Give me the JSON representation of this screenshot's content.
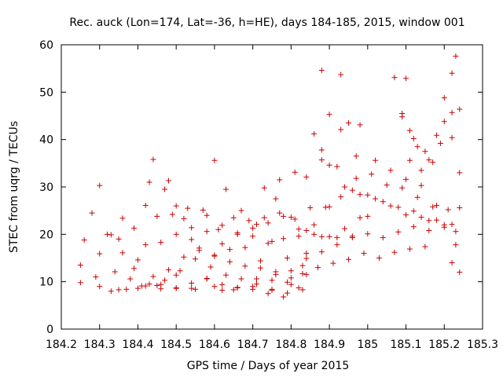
{
  "chart_data": {
    "type": "scatter",
    "title": "Rec. auck (Lon=174, Lat=-36, h=HE), days 184-185, 2015, window 001",
    "xlabel": "GPS time / Days of year 2015",
    "ylabel": "STEC from uqrg / TECUs",
    "xlim": [
      184.2,
      185.3
    ],
    "ylim": [
      0,
      60
    ],
    "xticks": [
      "184.2",
      "184.3",
      "184.4",
      "184.5",
      "184.6",
      "184.7",
      "184.8",
      "184.9",
      "185",
      "185.1",
      "185.2",
      "185.3"
    ],
    "yticks": [
      "0",
      "10",
      "20",
      "30",
      "40",
      "50",
      "60"
    ],
    "grid": false,
    "marker": "plus",
    "color": "#cc0000",
    "tracks": [
      [
        [
          184.25,
          9.8
        ],
        [
          184.3,
          9.0
        ],
        [
          184.35,
          8.3
        ],
        [
          184.4,
          8.6
        ],
        [
          184.45,
          9.2
        ],
        [
          184.5,
          8.7
        ],
        [
          184.55,
          8.4
        ],
        [
          184.6,
          9.0
        ],
        [
          184.65,
          8.3
        ],
        [
          184.7,
          9.0
        ],
        [
          184.75,
          8.2
        ],
        [
          184.8,
          9.4
        ],
        [
          184.84,
          11.5
        ]
      ],
      [
        [
          184.25,
          13.5
        ],
        [
          184.29,
          11.0
        ],
        [
          184.33,
          8.0
        ],
        [
          184.37,
          8.4
        ],
        [
          184.41,
          9.1
        ],
        [
          184.46,
          9.4
        ],
        [
          184.5,
          11.4
        ],
        [
          184.54,
          8.6
        ],
        [
          184.58,
          10.6
        ],
        [
          184.62,
          8.2
        ],
        [
          184.66,
          8.8
        ],
        [
          184.71,
          9.5
        ],
        [
          184.75,
          8.4
        ],
        [
          184.79,
          7.6
        ],
        [
          184.83,
          8.3
        ]
      ],
      [
        [
          184.26,
          18.8
        ],
        [
          184.3,
          15.9
        ],
        [
          184.34,
          12.1
        ],
        [
          184.38,
          10.6
        ],
        [
          184.42,
          9.1
        ],
        [
          184.46,
          8.5
        ],
        [
          184.5,
          8.6
        ],
        [
          184.54,
          9.7
        ],
        [
          184.58,
          10.7
        ],
        [
          184.62,
          9.4
        ],
        [
          184.66,
          8.7
        ],
        [
          184.7,
          8.4
        ],
        [
          184.74,
          7.5
        ],
        [
          184.78,
          6.8
        ],
        [
          184.82,
          8.7
        ]
      ],
      [
        [
          184.3,
          30.3
        ],
        [
          184.32,
          20.0
        ],
        [
          184.35,
          19.0
        ],
        [
          184.39,
          12.8
        ],
        [
          184.43,
          9.5
        ],
        [
          184.47,
          10.3
        ],
        [
          184.51,
          12.3
        ],
        [
          184.55,
          14.8
        ],
        [
          184.59,
          13.1
        ],
        [
          184.63,
          11.4
        ],
        [
          184.67,
          10.6
        ],
        [
          184.71,
          10.6
        ],
        [
          184.75,
          10.3
        ],
        [
          184.79,
          9.9
        ],
        [
          184.83,
          11.7
        ]
      ],
      [
        [
          184.28,
          24.5
        ],
        [
          184.33,
          19.9
        ],
        [
          184.36,
          16.1
        ],
        [
          184.4,
          14.6
        ],
        [
          184.44,
          11.1
        ],
        [
          184.48,
          12.5
        ],
        [
          184.52,
          15.2
        ],
        [
          184.56,
          16.6
        ],
        [
          184.6,
          15.6
        ],
        [
          184.64,
          16.8
        ],
        [
          184.68,
          17.2
        ],
        [
          184.72,
          14.4
        ],
        [
          184.76,
          11.5
        ],
        [
          184.8,
          12.3
        ],
        [
          184.84,
          16.0
        ]
      ],
      [
        [
          184.36,
          23.4
        ],
        [
          184.39,
          21.3
        ],
        [
          184.42,
          17.8
        ],
        [
          184.46,
          18.3
        ],
        [
          184.5,
          20.0
        ],
        [
          184.54,
          18.9
        ],
        [
          184.58,
          20.6
        ],
        [
          184.62,
          18.0
        ],
        [
          184.66,
          20.0
        ],
        [
          184.7,
          21.3
        ],
        [
          184.74,
          18.1
        ],
        [
          184.78,
          19.1
        ],
        [
          184.82,
          21.1
        ],
        [
          184.86,
          22.0
        ],
        [
          184.9,
          25.8
        ]
      ],
      [
        [
          184.42,
          26.1
        ],
        [
          184.45,
          23.8
        ],
        [
          184.49,
          24.2
        ],
        [
          184.53,
          25.5
        ],
        [
          184.57,
          25.1
        ],
        [
          184.61,
          21.0
        ],
        [
          184.65,
          23.5
        ],
        [
          184.69,
          22.9
        ],
        [
          184.73,
          23.5
        ],
        [
          184.77,
          24.5
        ],
        [
          184.81,
          23.2
        ],
        [
          184.85,
          25.6
        ],
        [
          184.89,
          25.7
        ],
        [
          184.93,
          27.9
        ],
        [
          184.97,
          31.8
        ]
      ],
      [
        [
          184.43,
          31.0
        ],
        [
          184.47,
          29.5
        ],
        [
          184.5,
          26.0
        ],
        [
          184.54,
          21.4
        ],
        [
          184.58,
          24.0
        ],
        [
          184.62,
          21.9
        ],
        [
          184.66,
          20.3
        ],
        [
          184.7,
          19.6
        ],
        [
          184.74,
          22.4
        ],
        [
          184.78,
          23.8
        ],
        [
          184.82,
          19.6
        ],
        [
          184.86,
          20.0
        ],
        [
          184.9,
          19.5
        ],
        [
          184.94,
          21.2
        ],
        [
          184.98,
          23.5
        ]
      ],
      [
        [
          184.44,
          35.8
        ],
        [
          184.48,
          31.3
        ],
        [
          184.52,
          23.3
        ],
        [
          184.56,
          17.1
        ],
        [
          184.6,
          15.4
        ],
        [
          184.64,
          14.2
        ],
        [
          184.68,
          13.3
        ],
        [
          184.72,
          12.9
        ],
        [
          184.76,
          12.1
        ],
        [
          184.8,
          10.8
        ],
        [
          184.84,
          14.9
        ],
        [
          184.88,
          16.3
        ],
        [
          184.92,
          17.8
        ],
        [
          184.96,
          19.3
        ],
        [
          185.0,
          23.8
        ]
      ],
      [
        [
          184.6,
          35.6
        ],
        [
          184.63,
          29.5
        ],
        [
          184.67,
          25.0
        ],
        [
          184.71,
          22.1
        ],
        [
          184.75,
          18.5
        ],
        [
          184.79,
          15.0
        ],
        [
          184.83,
          13.4
        ],
        [
          184.87,
          13.0
        ],
        [
          184.91,
          13.9
        ],
        [
          184.95,
          14.7
        ],
        [
          184.99,
          16.0
        ],
        [
          185.03,
          15.0
        ],
        [
          185.07,
          16.2
        ],
        [
          185.11,
          16.9
        ],
        [
          185.15,
          17.4
        ]
      ],
      [
        [
          184.73,
          29.8
        ],
        [
          184.76,
          27.5
        ],
        [
          184.8,
          23.6
        ],
        [
          184.84,
          20.8
        ],
        [
          184.88,
          19.5
        ],
        [
          184.92,
          19.3
        ],
        [
          184.96,
          19.6
        ],
        [
          185.0,
          20.1
        ],
        [
          185.04,
          19.3
        ],
        [
          185.08,
          20.5
        ],
        [
          185.12,
          21.6
        ],
        [
          185.16,
          20.8
        ],
        [
          185.2,
          21.5
        ],
        [
          185.23,
          20.6
        ]
      ],
      [
        [
          184.77,
          31.5
        ],
        [
          184.81,
          33.1
        ],
        [
          184.84,
          32.1
        ],
        [
          184.88,
          35.7
        ],
        [
          184.92,
          34.3
        ],
        [
          184.96,
          29.3
        ],
        [
          185.0,
          28.3
        ],
        [
          185.04,
          26.9
        ],
        [
          185.08,
          25.7
        ],
        [
          185.12,
          24.9
        ],
        [
          185.16,
          22.9
        ],
        [
          185.2,
          22.0
        ],
        [
          185.23,
          17.8
        ]
      ],
      [
        [
          184.86,
          41.2
        ],
        [
          184.88,
          37.8
        ],
        [
          184.9,
          34.6
        ],
        [
          184.94,
          30.0
        ],
        [
          184.98,
          28.4
        ],
        [
          185.02,
          27.5
        ],
        [
          185.06,
          26.0
        ],
        [
          185.1,
          24.1
        ],
        [
          185.14,
          23.6
        ],
        [
          185.18,
          23.0
        ],
        [
          185.22,
          22.1
        ],
        [
          185.24,
          12.0
        ]
      ],
      [
        [
          184.88,
          54.6
        ],
        [
          184.9,
          45.3
        ],
        [
          184.93,
          42.1
        ],
        [
          184.97,
          36.5
        ],
        [
          185.01,
          32.7
        ],
        [
          185.05,
          30.4
        ],
        [
          185.09,
          29.8
        ],
        [
          185.13,
          27.8
        ],
        [
          185.17,
          25.8
        ],
        [
          185.21,
          25.2
        ],
        [
          185.24,
          25.6
        ]
      ],
      [
        [
          184.93,
          53.7
        ],
        [
          184.95,
          43.5
        ],
        [
          184.98,
          43.1
        ],
        [
          185.02,
          35.6
        ],
        [
          185.06,
          33.5
        ],
        [
          185.1,
          31.6
        ],
        [
          185.14,
          30.3
        ],
        [
          185.18,
          26.1
        ],
        [
          185.22,
          14.0
        ]
      ],
      [
        [
          185.07,
          53.1
        ],
        [
          185.09,
          45.5
        ],
        [
          185.11,
          41.9
        ],
        [
          185.13,
          38.5
        ],
        [
          185.16,
          35.7
        ],
        [
          185.19,
          39.2
        ],
        [
          185.22,
          45.7
        ],
        [
          185.24,
          46.4
        ]
      ],
      [
        [
          185.1,
          52.9
        ],
        [
          185.12,
          40.2
        ],
        [
          185.15,
          37.5
        ],
        [
          185.18,
          40.9
        ],
        [
          185.2,
          48.8
        ],
        [
          185.22,
          54.0
        ],
        [
          185.23,
          57.6
        ]
      ],
      [
        [
          185.09,
          44.8
        ],
        [
          185.11,
          35.6
        ],
        [
          185.14,
          33.5
        ],
        [
          185.17,
          35.2
        ],
        [
          185.2,
          43.8
        ],
        [
          185.22,
          40.4
        ],
        [
          185.24,
          33.0
        ]
      ]
    ]
  }
}
